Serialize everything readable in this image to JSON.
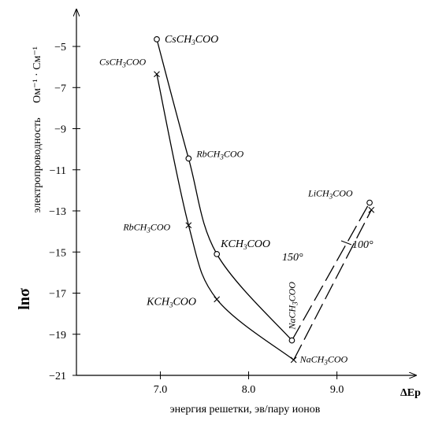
{
  "chart_data": {
    "type": "line",
    "xlabel": "энергия решетки, эв/пару ионов",
    "x_axis_symbol": "ΔEp",
    "ylabel_symbol": "lnσ",
    "ylabel_text": "электропроводность",
    "ylabel_units": "Ом⁻¹ · См⁻¹",
    "xlim": [
      6.05,
      9.78
    ],
    "ylim": [
      -21,
      -3.2
    ],
    "x_ticks": [
      {
        "value": 7.0,
        "label": "7.0"
      },
      {
        "value": 8.0,
        "label": "8.0"
      },
      {
        "value": 9.0,
        "label": "9.0"
      }
    ],
    "y_ticks": [
      {
        "value": -5,
        "label": "−5"
      },
      {
        "value": -7,
        "label": "−7"
      },
      {
        "value": -9,
        "label": "−9"
      },
      {
        "value": -11,
        "label": "−11"
      },
      {
        "value": -13,
        "label": "−13"
      },
      {
        "value": -15,
        "label": "−15"
      },
      {
        "value": -17,
        "label": "−17"
      },
      {
        "value": -19,
        "label": "−19"
      },
      {
        "value": -21,
        "label": "−21"
      }
    ],
    "series": [
      {
        "name": "150°",
        "marker": "circle",
        "points": [
          {
            "x": 6.96,
            "y": -4.65,
            "label": "CsCH₃COO"
          },
          {
            "x": 7.32,
            "y": -10.45,
            "label": "RbCH₃COO"
          },
          {
            "x": 7.64,
            "y": -15.1,
            "label": "KCH₃COO"
          },
          {
            "x": 8.49,
            "y": -19.3,
            "label": "NaCH₃COO"
          },
          {
            "x": 9.37,
            "y": -12.6,
            "label": "LiCH₃COO"
          }
        ]
      },
      {
        "name": "100°",
        "marker": "cross",
        "points": [
          {
            "x": 6.96,
            "y": -6.35,
            "label": "CsCH₃COO"
          },
          {
            "x": 7.32,
            "y": -13.7,
            "label": "RbCH₃COO"
          },
          {
            "x": 7.64,
            "y": -17.3,
            "label": "KCH₃COO"
          },
          {
            "x": 8.51,
            "y": -20.25,
            "label": "NaCH₃COO"
          },
          {
            "x": 9.39,
            "y": -12.95,
            "label": ""
          }
        ]
      }
    ]
  }
}
